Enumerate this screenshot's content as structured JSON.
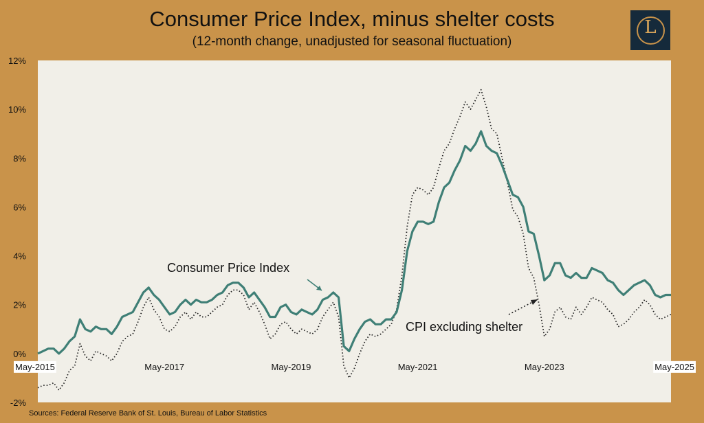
{
  "chart_data": {
    "type": "line",
    "title": "Consumer Price Index, minus shelter costs",
    "subtitle": "(12-month change, unadjusted for seasonal fluctuation)",
    "source": "Sources: Federal Reserve Bank of St. Louis, Bureau of Labor Statistics",
    "ylim": [
      -2,
      12
    ],
    "y_ticks": [
      "-2%",
      "0%",
      "2%",
      "4%",
      "6%",
      "8%",
      "10%",
      "12%"
    ],
    "x_ticks": [
      "May-2015",
      "May-2017",
      "May-2019",
      "May-2021",
      "May-2023",
      "May-2025"
    ],
    "x_start": "May-2015",
    "x_end": "Jun-2025",
    "grid": false,
    "colors": {
      "cpi": "#3f7f76",
      "excl": "#222222",
      "plot_bg": "#f1efe8",
      "frame": "#c9934a"
    },
    "series": [
      {
        "name": "Consumer Price Index",
        "style": "solid",
        "values": [
          0.0,
          0.1,
          0.2,
          0.2,
          0.0,
          0.2,
          0.5,
          0.7,
          1.4,
          1.0,
          0.9,
          1.1,
          1.0,
          1.0,
          0.8,
          1.1,
          1.5,
          1.6,
          1.7,
          2.1,
          2.5,
          2.7,
          2.4,
          2.2,
          1.9,
          1.6,
          1.7,
          2.0,
          2.2,
          2.0,
          2.2,
          2.1,
          2.1,
          2.2,
          2.4,
          2.5,
          2.8,
          2.9,
          2.9,
          2.7,
          2.3,
          2.5,
          2.2,
          1.9,
          1.5,
          1.5,
          1.9,
          2.0,
          1.7,
          1.6,
          1.8,
          1.7,
          1.6,
          1.8,
          2.2,
          2.3,
          2.5,
          2.3,
          0.3,
          0.1,
          0.6,
          1.0,
          1.3,
          1.4,
          1.2,
          1.2,
          1.4,
          1.4,
          1.7,
          2.6,
          4.2,
          5.0,
          5.4,
          5.4,
          5.3,
          5.4,
          6.2,
          6.8,
          7.0,
          7.5,
          7.9,
          8.5,
          8.3,
          8.6,
          9.1,
          8.5,
          8.3,
          8.2,
          7.7,
          7.1,
          6.5,
          6.4,
          6.0,
          5.0,
          4.9,
          4.0,
          3.0,
          3.2,
          3.7,
          3.7,
          3.2,
          3.1,
          3.3,
          3.1,
          3.1,
          3.5,
          3.4,
          3.3,
          3.0,
          2.9,
          2.6,
          2.4,
          2.6,
          2.8,
          2.9,
          3.0,
          2.8,
          2.4,
          2.3,
          2.4,
          2.4
        ],
        "label": "Consumer Price Index"
      },
      {
        "name": "CPI excluding shelter",
        "style": "dotted",
        "values": [
          -1.4,
          -1.3,
          -1.3,
          -1.2,
          -1.5,
          -1.2,
          -0.7,
          -0.5,
          0.4,
          -0.1,
          -0.3,
          0.1,
          0.0,
          -0.1,
          -0.3,
          0.0,
          0.5,
          0.7,
          0.8,
          1.3,
          1.9,
          2.3,
          1.8,
          1.5,
          1.0,
          0.9,
          1.1,
          1.5,
          1.7,
          1.4,
          1.7,
          1.5,
          1.5,
          1.7,
          1.9,
          2.0,
          2.4,
          2.6,
          2.6,
          2.4,
          1.8,
          2.1,
          1.7,
          1.2,
          0.6,
          0.8,
          1.2,
          1.3,
          1.0,
          0.8,
          1.0,
          0.9,
          0.8,
          1.0,
          1.5,
          1.8,
          2.1,
          1.5,
          -0.5,
          -1.0,
          -0.6,
          0.0,
          0.5,
          0.8,
          0.7,
          0.8,
          1.0,
          1.2,
          1.8,
          3.2,
          5.2,
          6.5,
          6.8,
          6.7,
          6.5,
          6.8,
          7.6,
          8.3,
          8.6,
          9.2,
          9.7,
          10.3,
          10.0,
          10.4,
          10.8,
          10.1,
          9.2,
          9.0,
          8.0,
          7.0,
          5.9,
          5.6,
          4.9,
          3.5,
          3.1,
          2.0,
          0.7,
          1.0,
          1.7,
          1.9,
          1.5,
          1.4,
          1.9,
          1.6,
          1.9,
          2.3,
          2.2,
          2.1,
          1.8,
          1.6,
          1.1,
          1.2,
          1.4,
          1.7,
          1.9,
          2.2,
          2.0,
          1.6,
          1.4,
          1.5,
          1.6
        ],
        "label": "CPI excluding shelter"
      }
    ]
  }
}
